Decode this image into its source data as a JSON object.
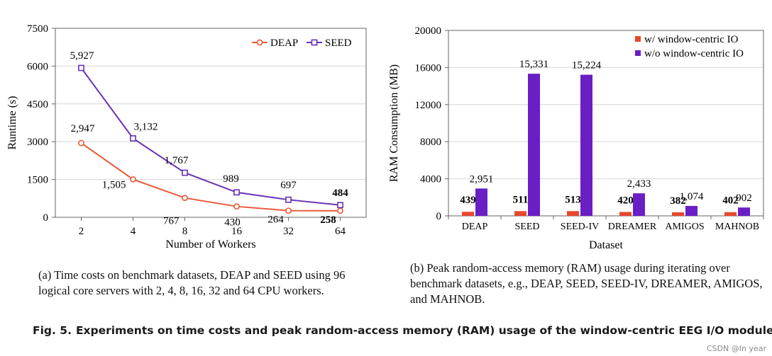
{
  "chart_data": [
    {
      "type": "line",
      "title": "",
      "xlabel": "Number of Workers",
      "ylabel": "Runtime (s)",
      "categories": [
        "2",
        "4",
        "8",
        "16",
        "32",
        "64"
      ],
      "yticks": [
        "0",
        "1500",
        "3000",
        "4500",
        "6000",
        "7500"
      ],
      "ylim": [
        0,
        7500
      ],
      "series": [
        {
          "name": "DEAP",
          "values": [
            2947,
            1505,
            767,
            430,
            264,
            258
          ],
          "labels": [
            "2,947",
            "1,505",
            "767",
            "430",
            "264",
            "258"
          ],
          "color": "#ea5a3a",
          "marker": "circle"
        },
        {
          "name": "SEED",
          "values": [
            5927,
            3132,
            1767,
            989,
            697,
            484
          ],
          "labels": [
            "5,927",
            "3,132",
            "1,767",
            "989",
            "697",
            "484"
          ],
          "color": "#6a32b8",
          "marker": "square"
        }
      ],
      "legend": "top-right",
      "grid": true
    },
    {
      "type": "bar",
      "title": "",
      "xlabel": "Dataset",
      "ylabel": "RAM Consumption  (MB)",
      "categories": [
        "DEAP",
        "SEED",
        "SEED-IV",
        "DREAMER",
        "AMIGOS",
        "MAHNOB"
      ],
      "yticks": [
        "0",
        "4000",
        "8000",
        "12000",
        "16000",
        "20000"
      ],
      "ylim": [
        0,
        20000
      ],
      "series": [
        {
          "name": "w/ window-centric IO",
          "values": [
            439,
            511,
            513,
            420,
            382,
            402
          ],
          "labels": [
            "439",
            "511",
            "513",
            "420",
            "382",
            "402"
          ],
          "color": "#e8472b"
        },
        {
          "name": "w/o window-centric IO",
          "values": [
            2951,
            15331,
            15224,
            2433,
            1074,
            902
          ],
          "labels": [
            "2,951",
            "15,331",
            "15,224",
            "2,433",
            "1,074",
            "902"
          ],
          "color": "#6a1fc4"
        }
      ],
      "legend": "top-right",
      "grid": true
    }
  ],
  "captions": {
    "a": "(a) Time costs on benchmark datasets, DEAP and SEED using 96 logical core servers with 2, 4, 8, 16, 32 and 64 CPU workers.",
    "b": "(b) Peak random-access memory (RAM) usage during iterating over benchmark datasets, e.g., DEAP, SEED, SEED-IV, DREAMER, AMIGOS, and MAHNOB.",
    "figure_label": "Fig. 5.",
    "figure_text": "Experiments on time costs and peak random-access memory (RAM) usage of the window-centric EEG I/O module."
  },
  "watermark": "CSDN @In year"
}
